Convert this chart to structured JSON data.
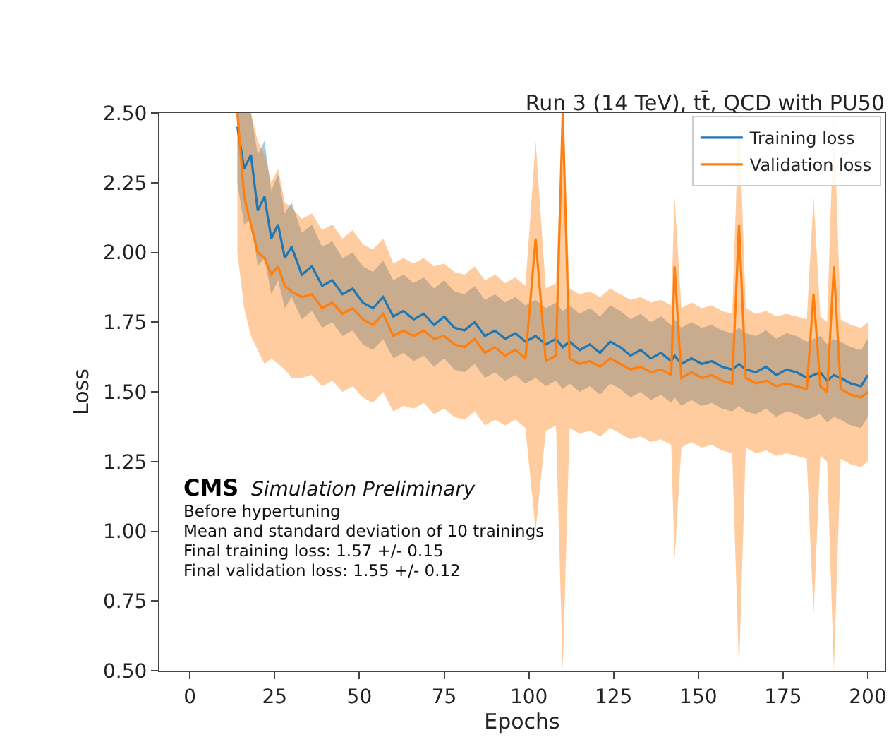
{
  "chart_data": {
    "type": "line",
    "title": "Run 3 (14 TeV), tt̄, QCD with PU50",
    "xlabel": "Epochs",
    "ylabel": "Loss",
    "xlim": [
      -9,
      205
    ],
    "xticks": [
      0,
      25,
      50,
      75,
      100,
      125,
      150,
      175,
      200
    ],
    "ylim": [
      0.5,
      2.5
    ],
    "yticks": [
      {
        "value": 0.5,
        "label": "0.50"
      },
      {
        "value": 0.75,
        "label": "0.75"
      },
      {
        "value": 1.0,
        "label": "1.00"
      },
      {
        "value": 1.25,
        "label": "1.25"
      },
      {
        "value": 1.5,
        "label": "1.50"
      },
      {
        "value": 1.75,
        "label": "1.75"
      },
      {
        "value": 2.0,
        "label": "2.00"
      },
      {
        "value": 2.25,
        "label": "2.25"
      },
      {
        "value": 2.5,
        "label": "2.50"
      }
    ],
    "x": [
      14,
      16,
      18,
      20,
      22,
      24,
      26,
      28,
      30,
      33,
      36,
      39,
      42,
      45,
      48,
      51,
      54,
      57,
      60,
      63,
      66,
      69,
      72,
      75,
      78,
      81,
      84,
      87,
      90,
      93,
      96,
      99,
      102,
      105,
      108,
      110,
      112,
      115,
      118,
      121,
      124,
      127,
      130,
      133,
      136,
      139,
      142,
      143,
      145,
      148,
      151,
      154,
      157,
      160,
      162,
      164,
      167,
      170,
      173,
      176,
      179,
      182,
      184,
      186,
      188,
      190,
      192,
      195,
      198,
      200
    ],
    "legend": "top right",
    "line_style": "solid",
    "marker": "none",
    "series": [
      {
        "name": "Training loss",
        "color": "#1f77b4",
        "values": [
          2.45,
          2.3,
          2.35,
          2.15,
          2.2,
          2.05,
          2.1,
          1.98,
          2.02,
          1.92,
          1.95,
          1.88,
          1.9,
          1.85,
          1.87,
          1.82,
          1.8,
          1.84,
          1.77,
          1.79,
          1.76,
          1.78,
          1.74,
          1.77,
          1.73,
          1.72,
          1.75,
          1.7,
          1.72,
          1.69,
          1.71,
          1.68,
          1.7,
          1.67,
          1.69,
          1.66,
          1.68,
          1.65,
          1.67,
          1.64,
          1.68,
          1.66,
          1.63,
          1.65,
          1.62,
          1.64,
          1.61,
          1.63,
          1.6,
          1.62,
          1.6,
          1.61,
          1.59,
          1.58,
          1.6,
          1.58,
          1.57,
          1.59,
          1.56,
          1.58,
          1.57,
          1.55,
          1.56,
          1.57,
          1.54,
          1.56,
          1.55,
          1.53,
          1.52,
          1.56
        ],
        "lower": [
          2.25,
          2.1,
          2.12,
          1.95,
          1.98,
          1.85,
          1.9,
          1.8,
          1.84,
          1.76,
          1.79,
          1.73,
          1.75,
          1.7,
          1.72,
          1.67,
          1.65,
          1.69,
          1.62,
          1.64,
          1.61,
          1.63,
          1.59,
          1.62,
          1.58,
          1.57,
          1.6,
          1.55,
          1.57,
          1.54,
          1.56,
          1.53,
          1.55,
          1.52,
          1.54,
          1.51,
          1.53,
          1.5,
          1.52,
          1.49,
          1.53,
          1.51,
          1.48,
          1.5,
          1.47,
          1.49,
          1.46,
          1.48,
          1.45,
          1.47,
          1.45,
          1.46,
          1.44,
          1.43,
          1.45,
          1.43,
          1.42,
          1.44,
          1.41,
          1.43,
          1.42,
          1.4,
          1.41,
          1.42,
          1.39,
          1.41,
          1.4,
          1.38,
          1.37,
          1.41
        ],
        "upper": [
          2.5,
          2.5,
          2.5,
          2.35,
          2.4,
          2.22,
          2.28,
          2.14,
          2.18,
          2.07,
          2.1,
          2.02,
          2.04,
          1.98,
          2.0,
          1.95,
          1.93,
          1.97,
          1.9,
          1.92,
          1.89,
          1.91,
          1.87,
          1.9,
          1.86,
          1.85,
          1.88,
          1.83,
          1.85,
          1.82,
          1.84,
          1.81,
          1.83,
          1.8,
          1.82,
          1.79,
          1.81,
          1.78,
          1.8,
          1.77,
          1.81,
          1.79,
          1.76,
          1.78,
          1.75,
          1.77,
          1.74,
          1.76,
          1.73,
          1.75,
          1.73,
          1.74,
          1.72,
          1.71,
          1.73,
          1.71,
          1.7,
          1.72,
          1.69,
          1.71,
          1.7,
          1.68,
          1.69,
          1.7,
          1.67,
          1.69,
          1.68,
          1.66,
          1.65,
          1.69
        ]
      },
      {
        "name": "Validation loss",
        "color": "#ff7f0e",
        "values": [
          2.5,
          2.2,
          2.1,
          2.0,
          1.98,
          1.92,
          1.95,
          1.88,
          1.86,
          1.84,
          1.85,
          1.8,
          1.82,
          1.78,
          1.8,
          1.76,
          1.74,
          1.78,
          1.7,
          1.72,
          1.7,
          1.72,
          1.69,
          1.7,
          1.67,
          1.66,
          1.69,
          1.64,
          1.66,
          1.63,
          1.65,
          1.62,
          2.05,
          1.61,
          1.63,
          2.5,
          1.62,
          1.6,
          1.61,
          1.59,
          1.62,
          1.6,
          1.58,
          1.59,
          1.57,
          1.58,
          1.56,
          1.95,
          1.55,
          1.57,
          1.55,
          1.56,
          1.54,
          1.53,
          2.1,
          1.55,
          1.53,
          1.54,
          1.52,
          1.53,
          1.52,
          1.51,
          1.85,
          1.52,
          1.5,
          1.95,
          1.51,
          1.49,
          1.48,
          1.5
        ],
        "lower": [
          2.0,
          1.8,
          1.7,
          1.65,
          1.6,
          1.62,
          1.6,
          1.58,
          1.55,
          1.55,
          1.56,
          1.52,
          1.54,
          1.5,
          1.52,
          1.48,
          1.46,
          1.5,
          1.43,
          1.45,
          1.44,
          1.46,
          1.42,
          1.44,
          1.41,
          1.4,
          1.43,
          1.38,
          1.4,
          1.38,
          1.4,
          1.37,
          1.0,
          1.36,
          1.38,
          0.5,
          1.37,
          1.35,
          1.36,
          1.34,
          1.37,
          1.35,
          1.33,
          1.34,
          1.32,
          1.33,
          1.31,
          0.9,
          1.3,
          1.32,
          1.3,
          1.31,
          1.29,
          1.28,
          0.5,
          1.3,
          1.28,
          1.29,
          1.27,
          1.28,
          1.27,
          1.26,
          0.7,
          1.27,
          1.25,
          0.5,
          1.26,
          1.24,
          1.23,
          1.25
        ],
        "upper": [
          2.5,
          2.5,
          2.5,
          2.4,
          2.35,
          2.25,
          2.3,
          2.18,
          2.16,
          2.12,
          2.14,
          2.08,
          2.1,
          2.05,
          2.08,
          2.03,
          2.01,
          2.05,
          1.96,
          1.98,
          1.96,
          1.98,
          1.95,
          1.96,
          1.93,
          1.92,
          1.95,
          1.9,
          1.92,
          1.89,
          1.91,
          1.88,
          2.4,
          1.87,
          1.89,
          2.5,
          1.87,
          1.85,
          1.86,
          1.84,
          1.87,
          1.85,
          1.83,
          1.84,
          1.82,
          1.83,
          1.81,
          2.2,
          1.8,
          1.82,
          1.8,
          1.81,
          1.79,
          1.78,
          2.5,
          1.8,
          1.78,
          1.79,
          1.77,
          1.78,
          1.77,
          1.76,
          2.2,
          1.77,
          1.75,
          2.5,
          1.76,
          1.74,
          1.73,
          1.75
        ]
      }
    ],
    "annotations": [
      "CMS",
      "Simulation Preliminary",
      "Before hypertuning",
      "Mean and standard deviation of 10 trainings",
      "Final training loss: 1.57 +/- 0.15",
      "Final validation loss: 1.55 +/- 0.12"
    ]
  }
}
